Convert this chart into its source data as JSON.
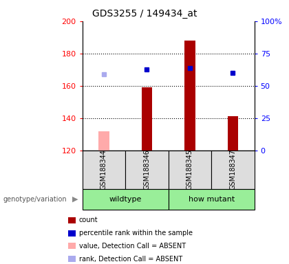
{
  "title": "GDS3255 / 149434_at",
  "samples": [
    "GSM188344",
    "GSM188346",
    "GSM188345",
    "GSM188347"
  ],
  "groups": [
    "wildtype",
    "wildtype",
    "how mutant",
    "how mutant"
  ],
  "ylim_left": [
    120,
    200
  ],
  "ylim_right": [
    0,
    100
  ],
  "yticks_left": [
    120,
    140,
    160,
    180,
    200
  ],
  "yticks_right": [
    0,
    25,
    50,
    75,
    100
  ],
  "yticklabels_right": [
    "0",
    "25",
    "50",
    "75",
    "100%"
  ],
  "bar_values": [
    null,
    159,
    188,
    141
  ],
  "bar_absent_values": [
    132,
    null,
    null,
    null
  ],
  "rank_pct_values": [
    null,
    62.5,
    63.75,
    60.0
  ],
  "rank_pct_absent": [
    58.75,
    null,
    null,
    null
  ],
  "bar_color": "#aa0000",
  "bar_absent_color": "#ffaaaa",
  "rank_color": "#0000cc",
  "rank_absent_color": "#aaaaee",
  "plot_bg": "#ffffff",
  "sample_bg": "#dddddd",
  "group_bg": "#99ee99",
  "bar_width": 0.25,
  "legend_items": [
    {
      "color": "#aa0000",
      "label": "count"
    },
    {
      "color": "#0000cc",
      "label": "percentile rank within the sample"
    },
    {
      "color": "#ffaaaa",
      "label": "value, Detection Call = ABSENT"
    },
    {
      "color": "#aaaaee",
      "label": "rank, Detection Call = ABSENT"
    }
  ]
}
